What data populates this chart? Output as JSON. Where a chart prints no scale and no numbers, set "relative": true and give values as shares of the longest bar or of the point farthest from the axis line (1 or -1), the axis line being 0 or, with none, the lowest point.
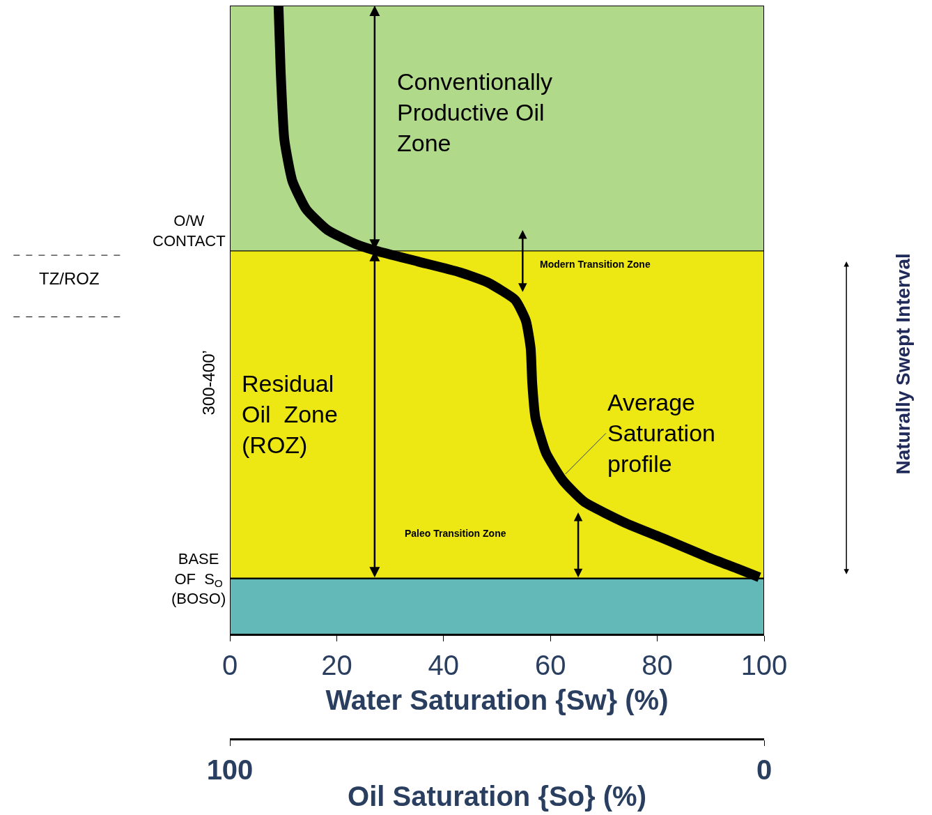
{
  "chart_data": {
    "type": "line",
    "relative": true,
    "xlabel": "Water Saturation {Sw} (%)",
    "x2label": "Oil Saturation {So} (%)",
    "xlim": [
      0,
      100
    ],
    "xticks": [
      0,
      20,
      40,
      60,
      80,
      100
    ],
    "x2lim": [
      100,
      0
    ],
    "x2ticks": [
      100,
      0
    ],
    "series": [
      {
        "color": "#000000",
        "x": [
          9.1,
          9.5,
          10.2,
          11.7,
          14.3,
          18.3,
          23.5,
          27.4,
          35.2,
          43,
          48.2,
          53.4,
          55.4,
          56.3,
          56.6,
          57.2,
          59.2,
          62.4,
          66.3,
          74.1,
          81.9,
          89.7,
          94.9,
          99.1
        ],
        "values": [
          1.0,
          0.898,
          0.787,
          0.721,
          0.676,
          0.643,
          0.621,
          0.61,
          0.593,
          0.576,
          0.56,
          0.532,
          0.499,
          0.455,
          0.399,
          0.344,
          0.288,
          0.244,
          0.211,
          0.177,
          0.15,
          0.122,
          0.105,
          0.091
        ]
      }
    ],
    "bands": [
      {
        "axis": "y",
        "from": 0.61,
        "to": 1.0,
        "label": "Conventionally\nProductive Oil\nZone",
        "color": "#b0d98a"
      },
      {
        "axis": "y",
        "from": 0.089,
        "to": 0.61,
        "label": "Residual\nOil  Zone\n(ROZ)",
        "color": "#ede814"
      },
      {
        "axis": "y",
        "from": 0,
        "to": 0.089,
        "label": null,
        "color": "#63b8b8"
      }
    ],
    "ref_lines": [
      {
        "axis": "y",
        "value": 0.61,
        "label": "O/W\nCONTACT"
      },
      {
        "axis": "y",
        "value": 0.089,
        "label": "BASE\nOF  S$_{O}$\n(BOSO)"
      }
    ],
    "annotations": [
      {
        "text": "Average\nSaturation\nprofile",
        "x": 62.8,
        "y": 0.255
      },
      "TZ/ROZ",
      "300-400’",
      "Modern Transition Zone",
      "Paleo Transition Zone",
      "Naturally Swept Interval"
    ]
  }
}
